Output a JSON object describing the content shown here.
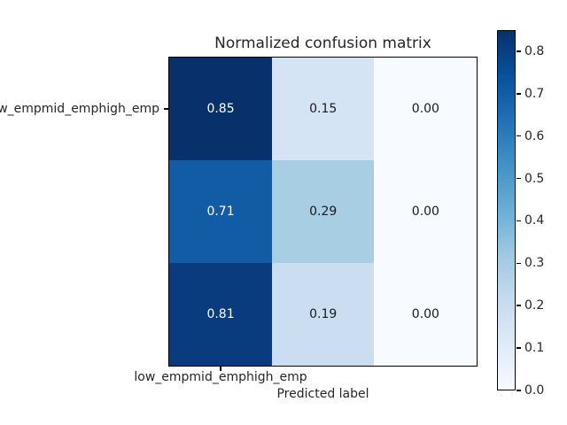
{
  "figure": {
    "title": "Normalized confusion matrix",
    "xlabel": "Predicted label",
    "x_tick_label": "low_empmid_emphigh_emp",
    "y_tick_label": "low_empmid_emphigh_emp"
  },
  "chart_data": {
    "type": "heatmap",
    "title": "Normalized confusion matrix",
    "xlabel": "Predicted label",
    "x_tick_labels": [
      "low_empmid_emphigh_emp"
    ],
    "y_tick_labels": [
      "low_empmid_emphigh_emp"
    ],
    "matrix": [
      [
        0.85,
        0.15,
        0.0
      ],
      [
        0.71,
        0.29,
        0.0
      ],
      [
        0.81,
        0.19,
        0.0
      ]
    ],
    "cell_labels": [
      [
        "0.85",
        "0.15",
        "0.00"
      ],
      [
        "0.71",
        "0.29",
        "0.00"
      ],
      [
        "0.81",
        "0.19",
        "0.00"
      ]
    ],
    "cell_colors": [
      [
        "#08306b",
        "#d4e4f4",
        "#f7fbff"
      ],
      [
        "#115ca5",
        "#a8cee4",
        "#f7fbff"
      ],
      [
        "#083c7e",
        "#cbdef1",
        "#f7fbff"
      ]
    ],
    "colormap": "Blues",
    "vmin": 0.0,
    "vmax": 0.85,
    "colorbar_ticks": [
      "0.0",
      "0.1",
      "0.2",
      "0.3",
      "0.4",
      "0.5",
      "0.6",
      "0.7",
      "0.8"
    ],
    "colorbar_gradient": [
      {
        "pos": 0.0,
        "color": "#f7fbff"
      },
      {
        "pos": 0.125,
        "color": "#deebf7"
      },
      {
        "pos": 0.25,
        "color": "#c6dbef"
      },
      {
        "pos": 0.375,
        "color": "#9ecae1"
      },
      {
        "pos": 0.5,
        "color": "#6baed6"
      },
      {
        "pos": 0.625,
        "color": "#4292c6"
      },
      {
        "pos": 0.75,
        "color": "#2171b5"
      },
      {
        "pos": 0.875,
        "color": "#08519c"
      },
      {
        "pos": 1.0,
        "color": "#08306b"
      }
    ],
    "grid": false
  },
  "colors": {
    "background": "#ffffff",
    "text": "#262626",
    "cell_text_light": "#ffffff",
    "cell_text_dark": "#1a1a1a",
    "spine": "#000000"
  }
}
